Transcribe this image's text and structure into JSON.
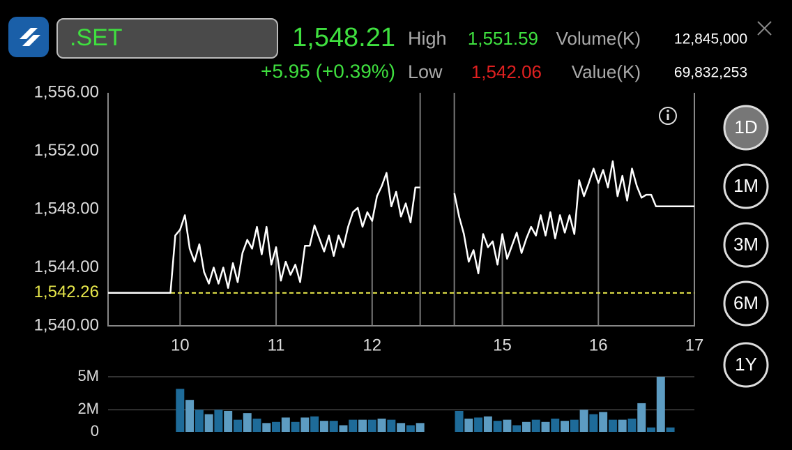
{
  "header": {
    "symbol": ".SET",
    "last": "1,548.21",
    "change": "+5.95 (+0.39%)",
    "high_label": "High",
    "high": "1,551.59",
    "low_label": "Low",
    "low": "1,542.06",
    "volume_label": "Volume(K)",
    "volume": "12,845,000",
    "value_label": "Value(K)",
    "value": "69,832,253"
  },
  "periods": [
    "1D",
    "1M",
    "3M",
    "6M",
    "1Y"
  ],
  "selected_period": "1D",
  "chart_data": [
    {
      "type": "line",
      "color": "#ffffff",
      "x": [
        9.25,
        9.9,
        9.95,
        10,
        10.05,
        10.1,
        10.15,
        10.2,
        10.25,
        10.3,
        10.35,
        10.4,
        10.45,
        10.5,
        10.55,
        10.6,
        10.65,
        10.7,
        10.75,
        10.8,
        10.85,
        10.9,
        10.95,
        11,
        11.05,
        11.1,
        11.15,
        11.2,
        11.25,
        11.3,
        11.35,
        11.4,
        11.45,
        11.5,
        11.55,
        11.6,
        11.65,
        11.7,
        11.75,
        11.8,
        11.85,
        11.9,
        11.95,
        12,
        12.05,
        12.1,
        12.15,
        12.2,
        12.25,
        12.3,
        12.35,
        12.4,
        12.45,
        12.5,
        13.5,
        14.5,
        14.55,
        14.6,
        14.65,
        14.7,
        14.75,
        14.8,
        14.85,
        14.9,
        14.95,
        15,
        15.05,
        15.1,
        15.15,
        15.2,
        15.25,
        15.3,
        15.35,
        15.4,
        15.45,
        15.5,
        15.55,
        15.6,
        15.65,
        15.7,
        15.75,
        15.8,
        15.85,
        15.9,
        15.95,
        16,
        16.05,
        16.1,
        16.15,
        16.2,
        16.25,
        16.3,
        16.35,
        16.4,
        16.45,
        16.5,
        16.55,
        16.6,
        17
      ],
      "values": [
        1542.26,
        1542.26,
        1546.2,
        1546.6,
        1547.6,
        1545.3,
        1544.4,
        1545.6,
        1543.7,
        1542.9,
        1544.0,
        1542.9,
        1544.0,
        1542.6,
        1544.3,
        1543.0,
        1545.0,
        1545.9,
        1545.3,
        1546.8,
        1544.9,
        1546.8,
        1544.2,
        1545.4,
        1543.1,
        1544.4,
        1543.5,
        1544.2,
        1543.0,
        1545.5,
        1545.5,
        1546.9,
        1546.0,
        1545.1,
        1546.2,
        1544.8,
        1546.2,
        1545.4,
        1546.8,
        1547.8,
        1548.1,
        1546.8,
        1547.8,
        1547.2,
        1548.9,
        1549.6,
        1550.5,
        1548.2,
        1549.2,
        1547.5,
        1548.4,
        1547.1,
        1549.5,
        1549.5,
        null,
        1549.1,
        1547.5,
        1546.3,
        1544.4,
        1545.2,
        1543.6,
        1546.3,
        1545.4,
        1545.8,
        1544.2,
        1546.3,
        1544.6,
        1545.5,
        1546.4,
        1545.0,
        1546.0,
        1546.8,
        1546.2,
        1547.6,
        1546.2,
        1547.8,
        1546.0,
        1547.6,
        1546.4,
        1547.6,
        1546.3,
        1550.0,
        1548.9,
        1549.8,
        1550.8,
        1549.8,
        1550.7,
        1549.5,
        1551.3,
        1548.9,
        1550.3,
        1548.6,
        1550.8,
        1549.6,
        1548.8,
        1549.0,
        1549.0,
        1548.2,
        1548.2
      ],
      "xlim": [
        9.25,
        17
      ],
      "x_break": [
        12.5,
        14.5
      ],
      "xticks": [
        10,
        11,
        12,
        15,
        16,
        17
      ],
      "ylim": [
        1540,
        1556
      ],
      "yticks": [
        {
          "value": 1540,
          "label": "1,540.00"
        },
        {
          "value": 1544,
          "label": "1,544.00"
        },
        {
          "value": 1548,
          "label": "1,548.00"
        },
        {
          "value": 1552,
          "label": "1,552.00"
        },
        {
          "value": 1556,
          "label": "1,556.00"
        }
      ],
      "reference": {
        "value": 1542.26,
        "label": "1,542.26",
        "color": "#e6e64a"
      }
    },
    {
      "type": "bar",
      "colors": [
        "#1e6b99",
        "#5d9cc2"
      ],
      "x": [
        10,
        10.1,
        10.2,
        10.3,
        10.4,
        10.5,
        10.6,
        10.7,
        10.8,
        10.9,
        11,
        11.1,
        11.2,
        11.3,
        11.4,
        11.5,
        11.6,
        11.7,
        11.8,
        11.9,
        12,
        12.1,
        12.2,
        12.3,
        12.4,
        12.5,
        14.55,
        14.65,
        14.75,
        14.85,
        14.95,
        15.05,
        15.15,
        15.25,
        15.35,
        15.45,
        15.55,
        15.65,
        15.75,
        15.85,
        15.95,
        16.05,
        16.15,
        16.25,
        16.35,
        16.45,
        16.55,
        16.65,
        16.75
      ],
      "values": [
        3.9,
        2.9,
        2.0,
        1.6,
        2.0,
        1.9,
        1.1,
        1.7,
        1.2,
        0.8,
        0.9,
        1.3,
        0.9,
        1.3,
        1.4,
        1.0,
        1.0,
        0.6,
        1.1,
        1.1,
        1.1,
        1.2,
        1.1,
        0.8,
        0.6,
        0.8,
        1.9,
        1.2,
        1.3,
        1.4,
        1.0,
        1.1,
        0.6,
        0.9,
        1.1,
        0.9,
        1.2,
        1.0,
        1.1,
        2.0,
        1.6,
        1.8,
        1.1,
        1.1,
        1.2,
        2.6,
        0.4,
        5.0,
        0.4
      ],
      "xlim": [
        9.25,
        17
      ],
      "x_break": [
        12.5,
        14.5
      ],
      "ylim": [
        0,
        5
      ],
      "yticks": [
        0,
        {
          "value": 2,
          "label": "2M"
        },
        {
          "value": 5,
          "label": "5M"
        }
      ]
    }
  ]
}
